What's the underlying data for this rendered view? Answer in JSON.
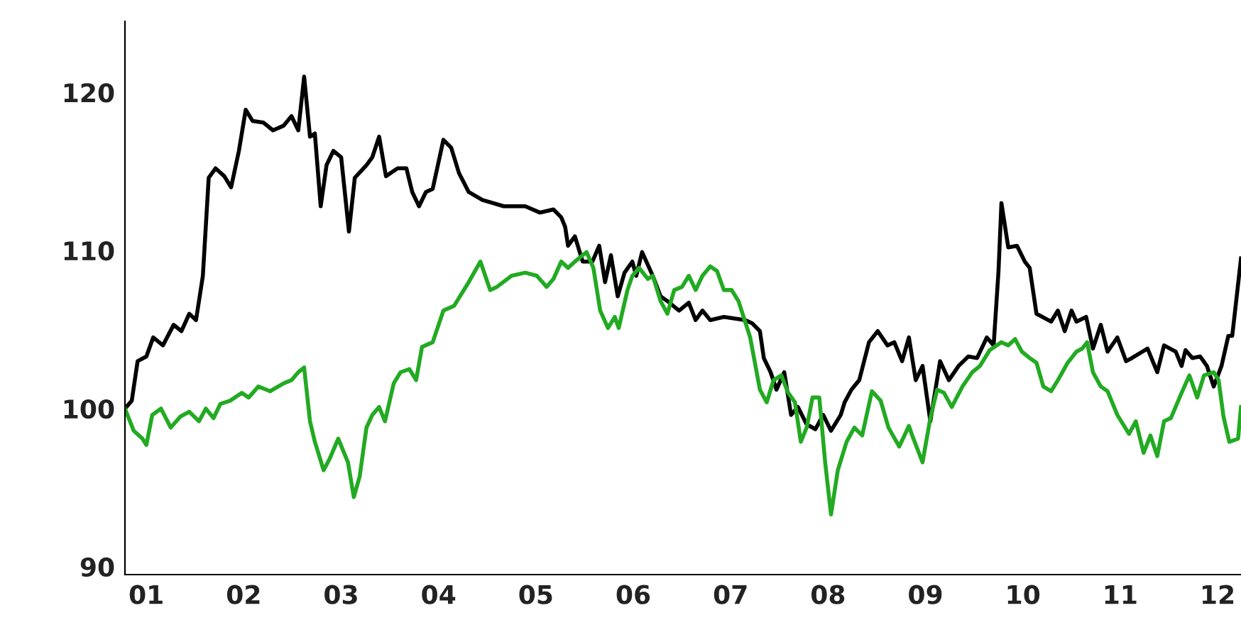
{
  "chart_data": {
    "type": "line",
    "xlim": [
      0.78,
      12.24
    ],
    "ylim": [
      89.5,
      124.5
    ],
    "xticks": [
      {
        "value": 1,
        "label": "01"
      },
      {
        "value": 2,
        "label": "02"
      },
      {
        "value": 3,
        "label": "03"
      },
      {
        "value": 4,
        "label": "04"
      },
      {
        "value": 5,
        "label": "05"
      },
      {
        "value": 6,
        "label": "06"
      },
      {
        "value": 7,
        "label": "07"
      },
      {
        "value": 8,
        "label": "08"
      },
      {
        "value": 9,
        "label": "09"
      },
      {
        "value": 10,
        "label": "10"
      },
      {
        "value": 11,
        "label": "11"
      },
      {
        "value": 12,
        "label": "12"
      }
    ],
    "yticks": [
      90,
      100,
      110,
      120
    ],
    "grid": false,
    "marker": "none",
    "line_style": "solid",
    "series": [
      {
        "color": "#000000",
        "x": [
          0.78,
          0.85,
          0.91,
          1.0,
          1.07,
          1.17,
          1.28,
          1.36,
          1.44,
          1.51,
          1.58,
          1.64,
          1.71,
          1.8,
          1.87,
          1.95,
          2.02,
          2.09,
          2.2,
          2.3,
          2.41,
          2.49,
          2.56,
          2.62,
          2.68,
          2.73,
          2.79,
          2.85,
          2.92,
          3.0,
          3.08,
          3.14,
          3.26,
          3.32,
          3.39,
          3.46,
          3.58,
          3.67,
          3.73,
          3.8,
          3.87,
          3.94,
          4.05,
          4.13,
          4.21,
          4.31,
          4.45,
          4.67,
          4.89,
          5.04,
          5.18,
          5.26,
          5.3,
          5.33,
          5.4,
          5.48,
          5.58,
          5.65,
          5.71,
          5.77,
          5.84,
          5.91,
          5.99,
          6.03,
          6.09,
          6.2,
          6.28,
          6.35,
          6.47,
          6.57,
          6.64,
          6.71,
          6.79,
          6.93,
          7.15,
          7.22,
          7.3,
          7.34,
          7.41,
          7.47,
          7.55,
          7.62,
          7.69,
          7.78,
          7.87,
          7.95,
          8.03,
          8.13,
          8.17,
          8.24,
          8.32,
          8.42,
          8.51,
          8.61,
          8.68,
          8.76,
          8.83,
          8.9,
          8.97,
          9.05,
          9.15,
          9.24,
          9.34,
          9.44,
          9.53,
          9.63,
          9.7,
          9.75,
          9.78,
          9.85,
          9.94,
          10.02,
          10.07,
          10.14,
          10.29,
          10.36,
          10.43,
          10.5,
          10.55,
          10.65,
          10.72,
          10.8,
          10.87,
          10.97,
          11.06,
          11.12,
          11.28,
          11.38,
          11.45,
          11.57,
          11.63,
          11.67,
          11.74,
          11.82,
          11.89,
          11.96,
          12.04,
          12.11,
          12.15,
          12.24
        ],
        "values": [
          100.0,
          100.5,
          103.0,
          103.3,
          104.5,
          104.0,
          105.3,
          104.9,
          106.0,
          105.6,
          108.4,
          114.6,
          115.2,
          114.7,
          114.0,
          116.3,
          118.9,
          118.2,
          118.1,
          117.6,
          117.9,
          118.5,
          117.6,
          121.0,
          117.2,
          117.4,
          112.8,
          115.4,
          116.3,
          115.9,
          111.2,
          114.6,
          115.4,
          115.9,
          117.2,
          114.7,
          115.2,
          115.2,
          113.7,
          112.8,
          113.7,
          113.9,
          117.0,
          116.5,
          114.9,
          113.7,
          113.2,
          112.8,
          112.8,
          112.4,
          112.6,
          112.1,
          111.5,
          110.3,
          110.9,
          109.3,
          109.3,
          110.3,
          108.0,
          109.7,
          107.1,
          108.6,
          109.3,
          108.4,
          109.9,
          108.4,
          107.1,
          106.8,
          106.2,
          106.7,
          105.6,
          106.2,
          105.6,
          105.8,
          105.6,
          105.4,
          104.9,
          103.2,
          102.3,
          101.2,
          102.3,
          99.6,
          100.1,
          99.0,
          98.7,
          99.6,
          98.6,
          99.6,
          100.4,
          101.2,
          101.8,
          104.2,
          104.9,
          104.0,
          104.2,
          103.0,
          104.5,
          101.8,
          102.7,
          99.2,
          103.0,
          101.8,
          102.7,
          103.3,
          103.2,
          104.5,
          104.0,
          108.7,
          113.0,
          110.2,
          110.3,
          109.3,
          108.9,
          106.0,
          105.5,
          106.2,
          104.9,
          106.2,
          105.5,
          105.8,
          103.8,
          105.3,
          103.6,
          104.5,
          103.0,
          103.2,
          103.8,
          102.3,
          104.0,
          103.6,
          102.7,
          103.7,
          103.2,
          103.3,
          102.7,
          101.4,
          102.7,
          104.6,
          104.6,
          109.5
        ]
      },
      {
        "color": "#22aa22",
        "x": [
          0.78,
          0.87,
          0.96,
          1.0,
          1.06,
          1.15,
          1.25,
          1.35,
          1.44,
          1.54,
          1.61,
          1.69,
          1.76,
          1.86,
          1.98,
          2.05,
          2.15,
          2.27,
          2.41,
          2.49,
          2.56,
          2.62,
          2.68,
          2.73,
          2.82,
          2.88,
          2.97,
          3.07,
          3.13,
          3.19,
          3.26,
          3.32,
          3.39,
          3.45,
          3.54,
          3.61,
          3.7,
          3.77,
          3.83,
          3.94,
          4.05,
          4.16,
          4.24,
          4.31,
          4.43,
          4.53,
          4.6,
          4.75,
          4.89,
          5.01,
          5.11,
          5.18,
          5.26,
          5.33,
          5.4,
          5.52,
          5.59,
          5.66,
          5.74,
          5.81,
          5.85,
          5.94,
          5.99,
          6.06,
          6.15,
          6.2,
          6.28,
          6.35,
          6.42,
          6.5,
          6.57,
          6.64,
          6.71,
          6.79,
          6.86,
          6.93,
          7.01,
          7.08,
          7.2,
          7.3,
          7.37,
          7.44,
          7.52,
          7.59,
          7.66,
          7.72,
          7.78,
          7.84,
          7.91,
          7.97,
          8.03,
          8.1,
          8.19,
          8.27,
          8.35,
          8.45,
          8.54,
          8.62,
          8.73,
          8.83,
          8.87,
          8.97,
          9.05,
          9.12,
          9.19,
          9.27,
          9.38,
          9.48,
          9.56,
          9.66,
          9.78,
          9.85,
          9.92,
          9.99,
          10.07,
          10.14,
          10.21,
          10.29,
          10.36,
          10.46,
          10.55,
          10.61,
          10.66,
          10.72,
          10.8,
          10.87,
          10.97,
          11.09,
          11.16,
          11.24,
          11.31,
          11.38,
          11.45,
          11.52,
          11.63,
          11.71,
          11.79,
          11.86,
          11.96,
          12.01,
          12.06,
          12.12,
          12.21,
          12.24
        ],
        "values": [
          100.0,
          98.6,
          98.1,
          97.7,
          99.6,
          100.0,
          98.8,
          99.5,
          99.8,
          99.2,
          100.0,
          99.4,
          100.3,
          100.5,
          101.0,
          100.7,
          101.4,
          101.1,
          101.6,
          101.8,
          102.3,
          102.6,
          99.2,
          97.9,
          96.1,
          96.8,
          98.1,
          96.6,
          94.4,
          95.7,
          98.8,
          99.6,
          100.1,
          99.2,
          101.6,
          102.3,
          102.5,
          101.8,
          103.9,
          104.2,
          106.2,
          106.5,
          107.3,
          108.0,
          109.3,
          107.5,
          107.7,
          108.4,
          108.6,
          108.4,
          107.7,
          108.2,
          109.3,
          108.9,
          109.3,
          109.9,
          108.9,
          106.2,
          105.1,
          105.8,
          105.1,
          107.5,
          108.4,
          108.9,
          108.2,
          108.4,
          106.8,
          106.0,
          107.5,
          107.7,
          108.4,
          107.5,
          108.4,
          109.0,
          108.7,
          107.5,
          107.5,
          106.8,
          104.5,
          101.2,
          100.4,
          101.8,
          102.1,
          101.0,
          100.4,
          97.9,
          98.8,
          100.7,
          100.7,
          96.6,
          93.3,
          96.1,
          97.9,
          98.8,
          98.3,
          101.1,
          100.5,
          98.8,
          97.6,
          98.9,
          98.2,
          96.6,
          99.4,
          101.2,
          101.0,
          100.1,
          101.4,
          102.3,
          102.7,
          103.7,
          104.2,
          104.0,
          104.4,
          103.6,
          103.2,
          102.9,
          101.4,
          101.1,
          101.8,
          102.9,
          103.6,
          103.8,
          104.2,
          102.3,
          101.4,
          101.1,
          99.6,
          98.4,
          99.2,
          97.2,
          98.3,
          97.0,
          99.2,
          99.4,
          101.0,
          102.1,
          100.7,
          102.1,
          102.3,
          101.8,
          99.5,
          97.9,
          98.1,
          100.1
        ]
      }
    ]
  }
}
